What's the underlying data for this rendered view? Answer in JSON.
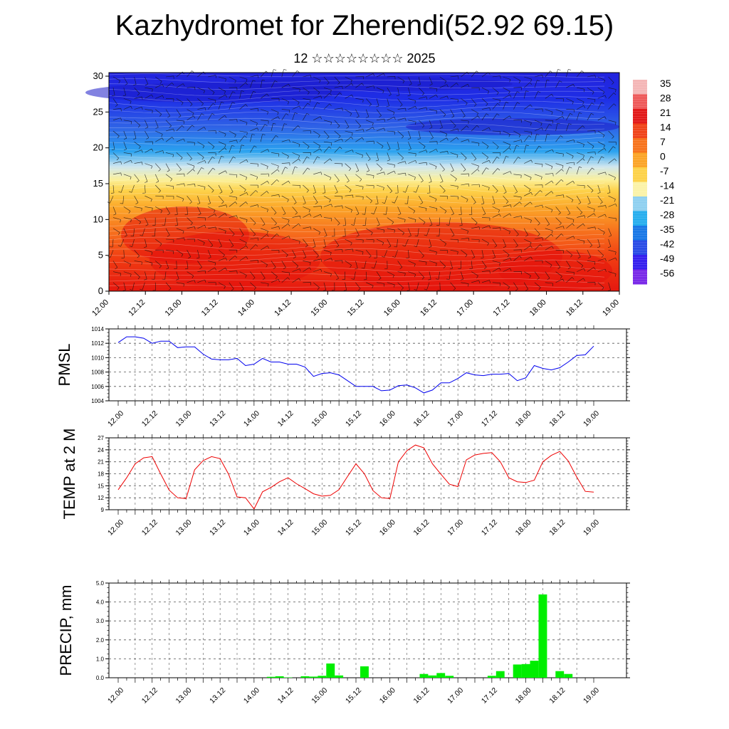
{
  "title": "Kazhydromet for Zherendi(52.92 69.15)",
  "subtitle": "12 ☆☆☆☆☆☆☆☆ 2025",
  "x_ticks": [
    "12.00",
    "12.12",
    "13.00",
    "13.12",
    "14.00",
    "14.12",
    "15.00",
    "15.12",
    "16.00",
    "16.12",
    "17.00",
    "17.12",
    "18.00",
    "18.12",
    "19.00"
  ],
  "colors": {
    "pmsl_line": "#0000ee",
    "temp_line": "#ee0000",
    "precip_bar": "#00ee00"
  },
  "chart_data": [
    {
      "type": "heatmap",
      "title": "",
      "xlabel": "",
      "ylabel": "",
      "ylim": [
        0,
        30
      ],
      "y_ticks": [
        "0",
        "5",
        "10",
        "15",
        "20",
        "25",
        "30"
      ],
      "vector_overlay": "wind-barbs",
      "colorbar": {
        "labels": [
          "35",
          "28",
          "21",
          "14",
          "7",
          "0",
          "-7",
          "-14",
          "-21",
          "-28",
          "-35",
          "-42",
          "-49",
          "-56"
        ],
        "colors": [
          "#f4b6b6",
          "#ee5a5a",
          "#e21a1a",
          "#f0441a",
          "#f7741e",
          "#fba528",
          "#fdd24a",
          "#fbf3a8",
          "#8fd0f0",
          "#27aeee",
          "#1a78e6",
          "#2a4ce6",
          "#3620ee",
          "#7a2ae8"
        ]
      }
    },
    {
      "type": "line",
      "ylabel": "PMSL",
      "ylim": [
        1004,
        1014
      ],
      "y_ticks": [
        "1004",
        "1006",
        "1008",
        "1010",
        "1012",
        "1014"
      ],
      "series": [
        {
          "values": [
            1012.1,
            1012.9,
            1012.9,
            1012.7,
            1012.0,
            1012.3,
            1012.3,
            1011.4,
            1011.5,
            1011.5,
            1010.5,
            1009.8,
            1009.7,
            1009.7,
            1009.9,
            1008.9,
            1009.1,
            1009.9,
            1009.4,
            1009.4,
            1009.1,
            1009.1,
            1008.7,
            1007.4,
            1007.8,
            1007.9,
            1007.6,
            1006.8,
            1006.0,
            1006.0,
            1006.0,
            1005.4,
            1005.5,
            1006.1,
            1006.2,
            1005.8,
            1005.1,
            1005.5,
            1006.5,
            1006.5,
            1007.1,
            1007.9,
            1007.6,
            1007.5,
            1007.7,
            1007.7,
            1007.8,
            1006.8,
            1007.2,
            1008.9,
            1008.5,
            1008.3,
            1008.6,
            1009.4,
            1010.3,
            1010.4,
            1011.6
          ]
        }
      ]
    },
    {
      "type": "line",
      "ylabel": "TEMP at 2 M",
      "ylim": [
        9,
        27
      ],
      "y_ticks": [
        "9",
        "12",
        "15",
        "18",
        "21",
        "24",
        "27"
      ],
      "series": [
        {
          "values": [
            14.0,
            17.0,
            20.5,
            22.0,
            22.3,
            18.0,
            13.9,
            12.0,
            11.8,
            19.0,
            21.3,
            22.3,
            21.8,
            17.9,
            12.2,
            12.0,
            9.2,
            13.5,
            14.6,
            16.0,
            17.0,
            15.5,
            14.3,
            13.0,
            12.4,
            12.6,
            14.0,
            17.3,
            20.5,
            18.0,
            13.8,
            12.0,
            11.8,
            21.0,
            23.8,
            25.2,
            24.5,
            20.5,
            17.9,
            15.4,
            14.8,
            21.5,
            22.7,
            23.1,
            23.3,
            21.0,
            17.0,
            16.0,
            15.8,
            16.4,
            21.0,
            22.6,
            23.6,
            21.2,
            17.2,
            13.6,
            13.4
          ]
        }
      ]
    },
    {
      "type": "bar",
      "ylabel": "PRECIP, mm",
      "ylim": [
        0,
        5
      ],
      "y_ticks": [
        "0.0",
        "1.0",
        "2.0",
        "3.0",
        "4.0",
        "5.0"
      ],
      "values": [
        0,
        0,
        0,
        0,
        0,
        0,
        0,
        0,
        0,
        0,
        0,
        0,
        0,
        0,
        0,
        0,
        0,
        0,
        0.05,
        0.08,
        0.02,
        0,
        0.08,
        0.06,
        0.1,
        0.75,
        0.12,
        0,
        0,
        0.6,
        0,
        0,
        0,
        0,
        0,
        0,
        0.2,
        0.12,
        0.25,
        0.1,
        0,
        0,
        0,
        0,
        0.1,
        0.35,
        0,
        0.7,
        0.72,
        0.9,
        4.4,
        0,
        0.35,
        0.2,
        0,
        0,
        0
      ]
    }
  ]
}
